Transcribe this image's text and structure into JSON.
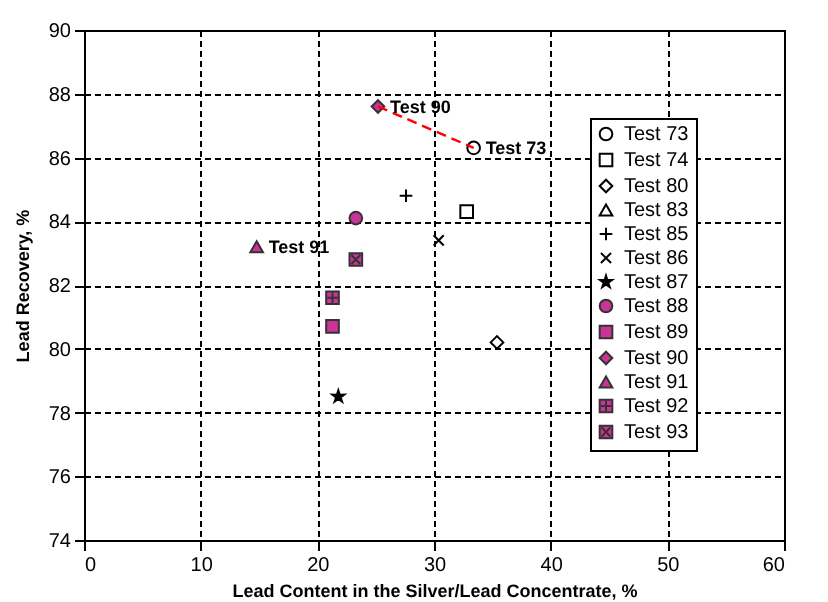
{
  "chart_data": {
    "type": "scatter",
    "xlabel": "Lead Content in the Silver/Lead Concentrate, %",
    "ylabel": "Lead Recovery, %",
    "xlim": [
      0,
      60
    ],
    "xticks": [
      0,
      10,
      20,
      30,
      40,
      50,
      60
    ],
    "ylim": [
      74,
      90
    ],
    "yticks": [
      74,
      76,
      78,
      80,
      82,
      84,
      86,
      88,
      90
    ],
    "grid": true,
    "legend": "right",
    "series": [
      {
        "name": "Test 73",
        "color": "#000000",
        "marker": "circle",
        "x": [
          33.4
        ],
        "values": [
          86.3
        ]
      },
      {
        "name": "Test 74",
        "color": "#000000",
        "marker": "square",
        "x": [
          32.8
        ],
        "values": [
          84.3
        ]
      },
      {
        "name": "Test 80",
        "color": "#000000",
        "marker": "diamond",
        "x": [
          35.4
        ],
        "values": [
          80.2
        ]
      },
      {
        "name": "Test 83",
        "color": "#000000",
        "marker": "triangle",
        "x": [
          null
        ],
        "values": [
          null
        ]
      },
      {
        "name": "Test 85",
        "color": "#000000",
        "marker": "cross",
        "x": [
          27.6
        ],
        "values": [
          84.8
        ]
      },
      {
        "name": "Test 86",
        "color": "#000000",
        "marker": "x",
        "x": [
          30.4
        ],
        "values": [
          83.4
        ]
      },
      {
        "name": "Test 87",
        "color": "#000000",
        "marker": "star",
        "x": [
          21.8
        ],
        "values": [
          78.5
        ]
      },
      {
        "name": "Test 88",
        "color": "#cc3399",
        "marker": "circle",
        "x": [
          23.3
        ],
        "values": [
          84.1
        ]
      },
      {
        "name": "Test 89",
        "color": "#cc3399",
        "marker": "square",
        "x": [
          21.3
        ],
        "values": [
          80.7
        ]
      },
      {
        "name": "Test 90",
        "color": "#cc3399",
        "marker": "diamond",
        "x": [
          25.2
        ],
        "values": [
          87.6
        ]
      },
      {
        "name": "Test 91",
        "color": "#cc3399",
        "marker": "triangle",
        "x": [
          14.8
        ],
        "values": [
          83.2
        ]
      },
      {
        "name": "Test 92",
        "color": "#cc3399",
        "marker": "cross",
        "x": [
          21.3
        ],
        "values": [
          81.6
        ]
      },
      {
        "name": "Test 93",
        "color": "#cc3399",
        "marker": "x",
        "x": [
          23.3
        ],
        "values": [
          82.8
        ]
      },
      {
        "type": "line",
        "color": "#ff0000",
        "line_style": "dashed",
        "marker": "none",
        "x": [
          25.2,
          33.4
        ],
        "values": [
          87.6,
          86.3
        ]
      }
    ],
    "annotations": [
      {
        "text": "Test 90",
        "x": 25.2,
        "y": 87.6
      },
      {
        "text": "Test 73",
        "x": 33.4,
        "y": 86.3
      },
      {
        "text": "Test 91",
        "x": 14.8,
        "y": 83.2
      }
    ]
  }
}
